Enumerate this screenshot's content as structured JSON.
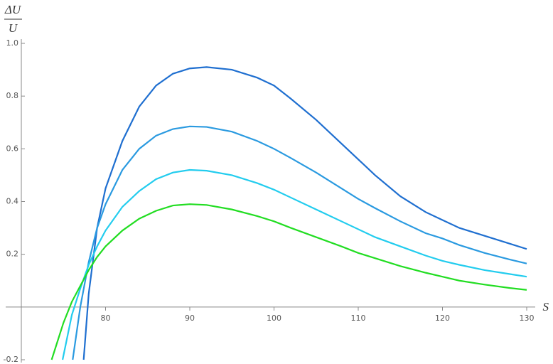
{
  "chart_data": {
    "type": "line",
    "xlabel": "S",
    "ylabel_numerator": "ΔU",
    "ylabel_denominator": "U",
    "xlim": [
      70,
      130
    ],
    "ylim": [
      -0.2,
      1.0
    ],
    "xticks": [
      80,
      90,
      100,
      110,
      120,
      130
    ],
    "yticks": [
      -0.2,
      0.2,
      0.4,
      0.6,
      0.8,
      {
        "value": 1,
        "label": "1.0"
      }
    ],
    "series": [
      {
        "color": "#1f6fd0",
        "x": [
          77.4,
          78,
          79,
          80,
          82,
          84,
          86,
          88,
          90,
          92,
          95,
          98,
          100,
          102,
          105,
          108,
          110,
          112,
          115,
          118,
          120,
          122,
          125,
          128,
          130
        ],
        "values": [
          -0.2,
          0.05,
          0.3,
          0.45,
          0.63,
          0.76,
          0.84,
          0.885,
          0.905,
          0.91,
          0.9,
          0.87,
          0.84,
          0.79,
          0.71,
          0.62,
          0.56,
          0.5,
          0.42,
          0.36,
          0.33,
          0.3,
          0.27,
          0.24,
          0.22
        ]
      },
      {
        "color": "#2a9ae0",
        "x": [
          76.1,
          77,
          78,
          79,
          80,
          82,
          84,
          86,
          88,
          90,
          92,
          95,
          98,
          100,
          102,
          105,
          108,
          110,
          112,
          115,
          118,
          120,
          122,
          125,
          128,
          130
        ],
        "values": [
          -0.2,
          0.0,
          0.17,
          0.3,
          0.39,
          0.52,
          0.6,
          0.65,
          0.675,
          0.685,
          0.683,
          0.665,
          0.63,
          0.6,
          0.565,
          0.51,
          0.45,
          0.41,
          0.375,
          0.325,
          0.28,
          0.26,
          0.235,
          0.205,
          0.18,
          0.165
        ]
      },
      {
        "color": "#22ccee",
        "x": [
          74.9,
          76,
          77,
          78,
          79,
          80,
          82,
          84,
          86,
          88,
          90,
          92,
          95,
          98,
          100,
          102,
          105,
          108,
          110,
          112,
          115,
          118,
          120,
          122,
          125,
          128,
          130
        ],
        "values": [
          -0.2,
          -0.03,
          0.07,
          0.16,
          0.23,
          0.29,
          0.38,
          0.44,
          0.485,
          0.51,
          0.52,
          0.517,
          0.5,
          0.47,
          0.445,
          0.415,
          0.37,
          0.325,
          0.295,
          0.265,
          0.23,
          0.195,
          0.175,
          0.16,
          0.14,
          0.125,
          0.115
        ]
      },
      {
        "color": "#22dd22",
        "x": [
          73.6,
          75,
          76,
          77,
          78,
          79,
          80,
          82,
          84,
          86,
          88,
          90,
          92,
          95,
          98,
          100,
          102,
          105,
          108,
          110,
          112,
          115,
          118,
          120,
          122,
          125,
          128,
          130
        ],
        "values": [
          -0.2,
          -0.06,
          0.02,
          0.08,
          0.14,
          0.19,
          0.23,
          0.29,
          0.335,
          0.365,
          0.385,
          0.39,
          0.387,
          0.37,
          0.345,
          0.325,
          0.3,
          0.265,
          0.23,
          0.205,
          0.185,
          0.155,
          0.13,
          0.115,
          0.1,
          0.085,
          0.072,
          0.065
        ]
      }
    ]
  }
}
